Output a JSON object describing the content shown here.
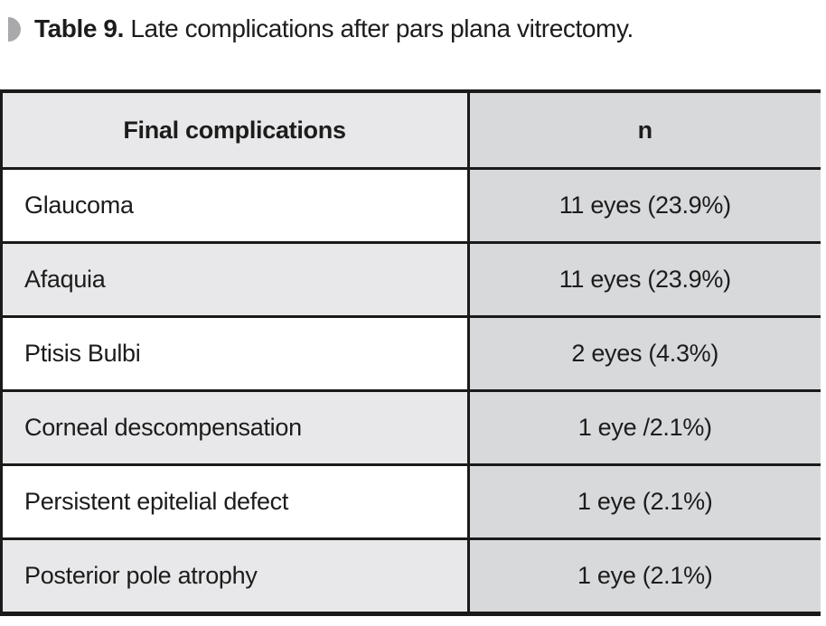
{
  "caption": {
    "bold": "Table 9.",
    "rest": " Late complications after pars plana vitrectomy."
  },
  "table": {
    "headers": [
      "Final complications",
      "n"
    ],
    "rows": [
      {
        "complication": "Glaucoma",
        "n": "11 eyes (23.9%)"
      },
      {
        "complication": "Afaquia",
        "n": "11 eyes (23.9%)"
      },
      {
        "complication": "Ptisis Bulbi",
        "n": "2 eyes (4.3%)"
      },
      {
        "complication": "Corneal descompensation",
        "n": "1 eye /2.1%)"
      },
      {
        "complication": "Persistent epitelial defect",
        "n": "1 eye (2.1%)"
      },
      {
        "complication": "Posterior pole atrophy",
        "n": "1 eye (2.1%)"
      }
    ]
  },
  "icons": {
    "caption_bullet": "half-circle-right-icon"
  },
  "colors": {
    "row_light_gray": "#e8e8ea",
    "n_column_gray": "#d8d9db",
    "border_black": "#1a1a1a",
    "bullet_gray": "#a9a9ab",
    "background": "#ffffff"
  }
}
